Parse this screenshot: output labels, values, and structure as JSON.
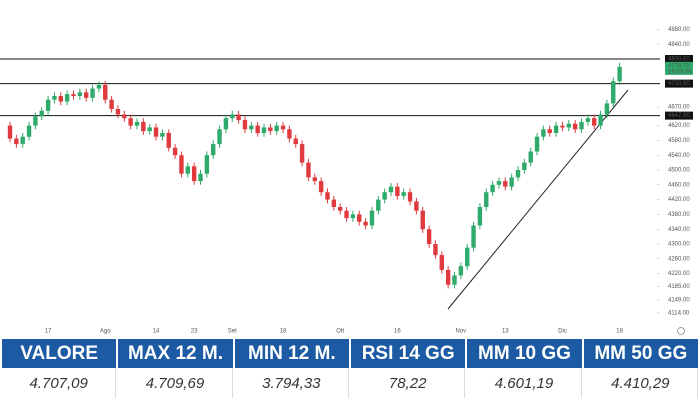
{
  "chart_data": {
    "type": "candlestick",
    "categories": [
      null,
      null,
      null,
      null,
      null,
      null,
      "17",
      null,
      null,
      null,
      null,
      null,
      null,
      null,
      null,
      "Ago",
      null,
      null,
      null,
      null,
      null,
      null,
      null,
      "14",
      null,
      null,
      null,
      null,
      null,
      "23",
      null,
      null,
      null,
      null,
      null,
      "Set",
      null,
      null,
      null,
      null,
      null,
      null,
      null,
      "18",
      null,
      null,
      null,
      null,
      null,
      null,
      null,
      null,
      "Ott",
      null,
      null,
      null,
      null,
      null,
      null,
      null,
      null,
      "16",
      null,
      null,
      null,
      null,
      null,
      null,
      null,
      null,
      null,
      "Nov",
      null,
      null,
      null,
      null,
      null,
      null,
      "13",
      null,
      null,
      null,
      null,
      null,
      null,
      null,
      null,
      "Dic",
      null,
      null,
      null,
      null,
      null,
      null,
      null,
      null,
      "18"
    ],
    "open": [
      4620,
      4585,
      4570,
      4590,
      4620,
      4645,
      4660,
      4690,
      4700,
      4685,
      4705,
      4700,
      4710,
      4695,
      4720,
      4730,
      4690,
      4665,
      4650,
      4640,
      4620,
      4630,
      4605,
      4615,
      4590,
      4600,
      4560,
      4540,
      4490,
      4510,
      4470,
      4490,
      4540,
      4570,
      4610,
      4640,
      4650,
      4635,
      4610,
      4620,
      4600,
      4615,
      4605,
      4620,
      4610,
      4585,
      4570,
      4520,
      4480,
      4470,
      4440,
      4420,
      4400,
      4390,
      4370,
      4380,
      4360,
      4350,
      4390,
      4420,
      4440,
      4455,
      4430,
      4440,
      4415,
      4390,
      4340,
      4300,
      4270,
      4230,
      4190,
      4215,
      4240,
      4290,
      4350,
      4400,
      4440,
      4460,
      4470,
      4455,
      4480,
      4500,
      4520,
      4550,
      4590,
      4610,
      4600,
      4620,
      4615,
      4625,
      4610,
      4630,
      4640,
      4620,
      4650,
      4680,
      4740
    ],
    "high": [
      4630,
      4595,
      4600,
      4630,
      4655,
      4670,
      4700,
      4710,
      4710,
      4715,
      4715,
      4720,
      4720,
      4730,
      4740,
      4740,
      4700,
      4675,
      4660,
      4650,
      4640,
      4640,
      4625,
      4625,
      4610,
      4610,
      4570,
      4550,
      4520,
      4520,
      4500,
      4550,
      4580,
      4620,
      4650,
      4660,
      4660,
      4645,
      4630,
      4630,
      4625,
      4625,
      4630,
      4630,
      4620,
      4595,
      4580,
      4530,
      4490,
      4480,
      4450,
      4430,
      4410,
      4400,
      4390,
      4390,
      4370,
      4400,
      4430,
      4450,
      4465,
      4465,
      4450,
      4450,
      4425,
      4400,
      4350,
      4310,
      4280,
      4240,
      4225,
      4250,
      4300,
      4360,
      4410,
      4450,
      4470,
      4480,
      4480,
      4490,
      4510,
      4530,
      4560,
      4600,
      4620,
      4620,
      4630,
      4630,
      4635,
      4635,
      4640,
      4650,
      4650,
      4660,
      4690,
      4750,
      4790
    ],
    "low": [
      4575,
      4560,
      4560,
      4580,
      4610,
      4635,
      4650,
      4680,
      4675,
      4675,
      4690,
      4690,
      4685,
      4685,
      4710,
      4680,
      4655,
      4640,
      4630,
      4610,
      4610,
      4595,
      4595,
      4580,
      4580,
      4550,
      4530,
      4480,
      4480,
      4460,
      4460,
      4480,
      4530,
      4560,
      4600,
      4630,
      4625,
      4600,
      4600,
      4590,
      4590,
      4595,
      4595,
      4600,
      4575,
      4560,
      4510,
      4470,
      4460,
      4430,
      4410,
      4390,
      4380,
      4360,
      4360,
      4350,
      4340,
      4340,
      4380,
      4410,
      4430,
      4420,
      4420,
      4405,
      4380,
      4330,
      4290,
      4260,
      4220,
      4180,
      4180,
      4205,
      4230,
      4280,
      4340,
      4390,
      4430,
      4450,
      4445,
      4445,
      4470,
      4490,
      4510,
      4540,
      4580,
      4590,
      4590,
      4605,
      4605,
      4600,
      4600,
      4620,
      4610,
      4610,
      4640,
      4670,
      4730
    ],
    "close": [
      4585,
      4570,
      4590,
      4620,
      4645,
      4660,
      4690,
      4700,
      4685,
      4705,
      4700,
      4710,
      4695,
      4720,
      4730,
      4690,
      4665,
      4650,
      4640,
      4620,
      4630,
      4605,
      4615,
      4590,
      4600,
      4560,
      4540,
      4490,
      4510,
      4470,
      4490,
      4540,
      4570,
      4610,
      4640,
      4650,
      4635,
      4610,
      4620,
      4600,
      4615,
      4605,
      4620,
      4610,
      4585,
      4570,
      4520,
      4480,
      4470,
      4440,
      4420,
      4400,
      4390,
      4370,
      4380,
      4360,
      4350,
      4390,
      4420,
      4440,
      4455,
      4430,
      4440,
      4415,
      4390,
      4340,
      4300,
      4270,
      4230,
      4190,
      4215,
      4240,
      4290,
      4350,
      4400,
      4440,
      4460,
      4470,
      4455,
      4480,
      4500,
      4520,
      4550,
      4590,
      4610,
      4600,
      4620,
      4615,
      4625,
      4610,
      4630,
      4640,
      4620,
      4650,
      4680,
      4740,
      4778.75
    ],
    "up_color": "#2eaa6a",
    "down_color": "#e0393e",
    "ylim": [
      4100,
      4900
    ],
    "yticks": [
      {
        "value": 4880,
        "label": "4880.00"
      },
      {
        "value": 4840,
        "label": "4840.00"
      },
      {
        "value": 4670,
        "label": "4670.00"
      },
      {
        "value": 4620,
        "label": "4620.00"
      },
      {
        "value": 4580,
        "label": "4580.00"
      },
      {
        "value": 4540,
        "label": "4540.00"
      },
      {
        "value": 4500,
        "label": "4500.00"
      },
      {
        "value": 4460,
        "label": "4460.00"
      },
      {
        "value": 4420,
        "label": "4420.00"
      },
      {
        "value": 4380,
        "label": "4380.00"
      },
      {
        "value": 4340,
        "label": "4340.00"
      },
      {
        "value": 4300,
        "label": "4300.00"
      },
      {
        "value": 4260,
        "label": "4260.00"
      },
      {
        "value": 4220,
        "label": "4220.00"
      },
      {
        "value": 4185,
        "label": "4185.00"
      },
      {
        "value": 4149,
        "label": "4149.00"
      },
      {
        "value": 4114,
        "label": "4114.00"
      }
    ],
    "levels": [
      {
        "value": 4800,
        "label": "4800.00"
      },
      {
        "value": 4733.5,
        "label": "4733.50"
      },
      {
        "value": 4647,
        "label": "4647.00"
      }
    ],
    "last_price": {
      "value": 4778.75,
      "label": "4778.75",
      "time": "16:03:09"
    }
  },
  "table": {
    "headers": [
      "VALORE",
      "MAX 12 M.",
      "MIN 12 M.",
      "RSI 14 GG",
      "MM 10 GG",
      "MM 50 GG"
    ],
    "rows": [
      [
        "4.707,09",
        "4.709,69",
        "3.794,33",
        "78,22",
        "4.601,19",
        "4.410,29"
      ]
    ]
  }
}
